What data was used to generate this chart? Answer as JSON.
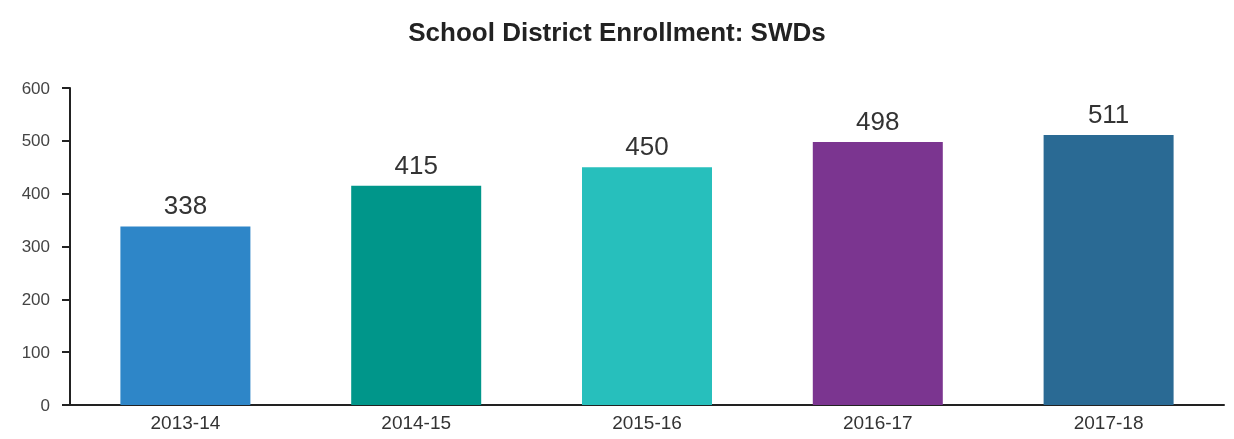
{
  "chart_data": {
    "type": "bar",
    "title": "School District Enrollment: SWDs",
    "categories": [
      "2013-14",
      "2014-15",
      "2015-16",
      "2016-17",
      "2017-18"
    ],
    "values": [
      338,
      415,
      450,
      498,
      511
    ],
    "colors": [
      "#2e86c8",
      "#00968a",
      "#27bfbc",
      "#7b3590",
      "#2a6a94"
    ],
    "ylim": [
      0,
      600
    ],
    "yticks": [
      0,
      100,
      200,
      300,
      400,
      500,
      600
    ],
    "grid": false,
    "data_labels": true
  }
}
